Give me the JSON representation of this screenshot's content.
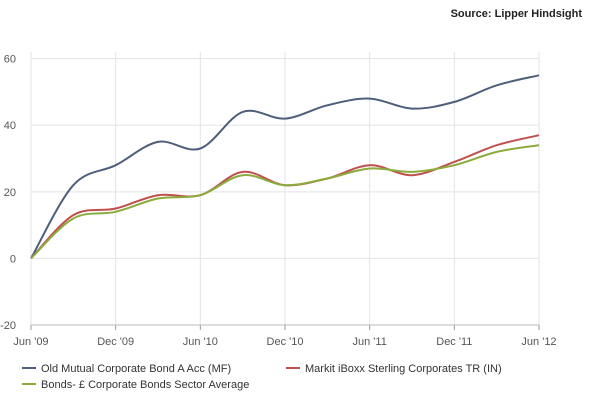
{
  "source_text": "Source: Lipper Hindsight",
  "chart_data": {
    "type": "line",
    "xlabel": "",
    "ylabel": "",
    "x": [
      "Jun '09",
      "Sep '09",
      "Dec '09",
      "Mar '10",
      "Jun '10",
      "Sep '10",
      "Dec '10",
      "Mar '11",
      "Jun '11",
      "Sep '11",
      "Dec '11",
      "Mar '12",
      "Jun '12"
    ],
    "x_tick_labels": [
      "Jun '09",
      "Dec '09",
      "Jun '10",
      "Dec '10",
      "Jun '11",
      "Dec '11",
      "Jun '12"
    ],
    "y_ticks": [
      -20,
      0,
      20,
      40,
      60
    ],
    "ylim": [
      -20,
      62
    ],
    "grid": true,
    "legend_position": "bottom",
    "series": [
      {
        "name": "Old Mutual Corporate Bond A Acc (MF)",
        "color": "#4d5f7a",
        "values": [
          0,
          22,
          28,
          35,
          33,
          44,
          42,
          46,
          48,
          45,
          47,
          52,
          55
        ]
      },
      {
        "name": "Markit iBoxx Sterling Corporates TR (IN)",
        "color": "#c0504d",
        "values": [
          0,
          13,
          15,
          19,
          19,
          26,
          22,
          24,
          28,
          25,
          29,
          34,
          37
        ]
      },
      {
        "name": "Bonds- £ Corporate Bonds Sector Average",
        "color": "#8bab3c",
        "values": [
          0,
          12,
          14,
          18,
          19,
          25,
          22,
          24,
          27,
          26,
          28,
          32,
          34
        ]
      }
    ]
  }
}
